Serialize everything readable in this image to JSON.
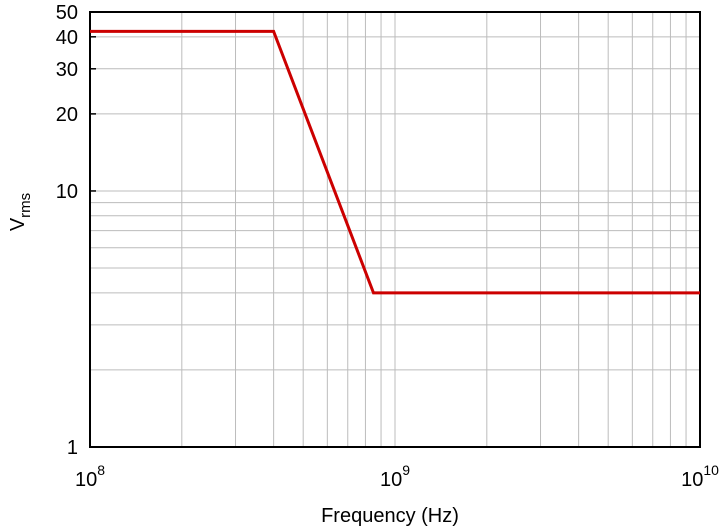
{
  "chart_data": {
    "type": "line",
    "xlabel": "Frequency (Hz)",
    "ylabel_main": "V",
    "ylabel_sub": "rms",
    "x_scale": "log",
    "y_scale": "log",
    "xlim": [
      100000000,
      10000000000
    ],
    "ylim": [
      1,
      50
    ],
    "grid": true,
    "x_ticks": [
      {
        "value": 100000000,
        "base": "10",
        "exp": "8"
      },
      {
        "value": 1000000000,
        "base": "10",
        "exp": "9"
      },
      {
        "value": 10000000000,
        "base": "10",
        "exp": "10"
      }
    ],
    "y_ticks": [
      {
        "value": 1,
        "label": "1"
      },
      {
        "value": 10,
        "label": "10"
      },
      {
        "value": 20,
        "label": "20"
      },
      {
        "value": 30,
        "label": "30"
      },
      {
        "value": 40,
        "label": "40"
      },
      {
        "value": 50,
        "label": "50"
      }
    ],
    "series": [
      {
        "color": "#cc0000",
        "x": [
          100000000,
          400000000,
          850000000,
          10000000000
        ],
        "y": [
          42,
          42,
          4,
          4
        ]
      }
    ]
  }
}
